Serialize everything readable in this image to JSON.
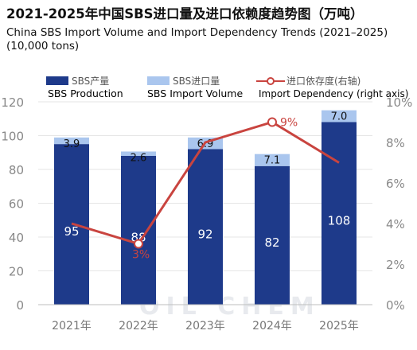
{
  "title": "2021-2025年中国SBS进口量及进口依赖度趋势图（万吨）",
  "subtitle": "China SBS Import Volume and Import Dependency Trends (2021–2025) (10,000 tons)",
  "legend": [
    {
      "label": "SBS产量",
      "label_en": "SBS Production",
      "color": "#1e3a8a"
    },
    {
      "label": "SBS进口量",
      "label_en": "SBS Import Volume",
      "color": "#aac6ee"
    },
    {
      "label": "进口依存度(右轴)",
      "label_en": "Import Dependency (right axis)",
      "color": "#c9443f"
    }
  ],
  "watermark": "OIL CHEM",
  "chart_data": {
    "type": "bar",
    "stacked": true,
    "categories": [
      "2021年",
      "2022年",
      "2023年",
      "2024年",
      "2025年"
    ],
    "series": [
      {
        "name": "SBS产量",
        "axis": "left",
        "values": [
          95,
          88,
          92,
          82,
          108
        ],
        "labels": [
          "95",
          "88",
          "92",
          "82",
          "108"
        ]
      },
      {
        "name": "SBS进口量",
        "axis": "left",
        "values": [
          3.9,
          2.6,
          6.9,
          7.1,
          7.0
        ],
        "labels": [
          "3.9",
          "2.6",
          "6.9",
          "7.1",
          "7.0"
        ]
      },
      {
        "name": "进口依存度(右轴)",
        "axis": "right",
        "type": "line",
        "values": [
          4,
          3,
          8,
          9,
          7
        ],
        "labels": [
          "",
          "3%",
          "",
          "9%",
          ""
        ]
      }
    ],
    "yleft": {
      "ticks": [
        0,
        20,
        40,
        60,
        80,
        100,
        120
      ],
      "tick_labels": [
        "0",
        "20",
        "40",
        "60",
        "80",
        "100",
        "120"
      ],
      "lim": [
        0,
        120
      ]
    },
    "yright": {
      "ticks": [
        0,
        2,
        4,
        6,
        8,
        10
      ],
      "tick_labels": [
        "0%",
        "2%",
        "4%",
        "6%",
        "8%",
        "10%"
      ],
      "lim": [
        0,
        10
      ]
    },
    "grid": true,
    "legend_position": "top"
  }
}
